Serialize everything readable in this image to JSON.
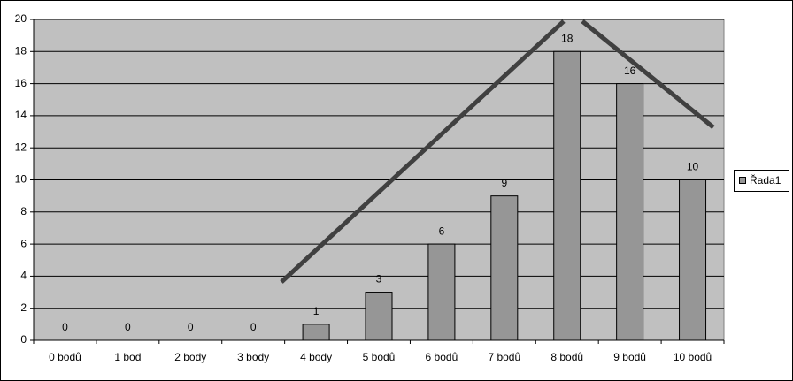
{
  "chart_data": {
    "type": "bar",
    "categories": [
      "0 bodů",
      "1 bod",
      "2 body",
      "3 body",
      "4 body",
      "5 bodů",
      "6 bodů",
      "7 bodů",
      "8 bodů",
      "9 bodů",
      "10 bodů"
    ],
    "series": [
      {
        "name": "Řada1",
        "color": "#969696",
        "values": [
          0,
          0,
          0,
          0,
          1,
          3,
          6,
          9,
          18,
          16,
          10
        ]
      }
    ],
    "ylim": [
      0,
      20
    ],
    "yticks": [
      0,
      2,
      4,
      6,
      8,
      10,
      12,
      14,
      16,
      18,
      20
    ],
    "grid": true,
    "legend": "right"
  }
}
